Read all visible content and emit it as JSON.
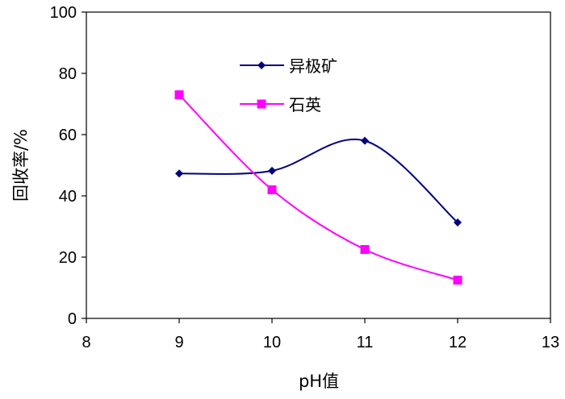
{
  "chart_data": {
    "type": "line",
    "xlabel": "pH值",
    "ylabel": "回收率/%",
    "xlim": [
      8,
      13
    ],
    "ylim": [
      0,
      100
    ],
    "x_ticks": [
      "8",
      "9",
      "10",
      "11",
      "12",
      "13"
    ],
    "y_ticks": [
      "0",
      "20",
      "40",
      "60",
      "80",
      "100"
    ],
    "grid": false,
    "legend_position": "top-center",
    "series": [
      {
        "name": "异极矿",
        "color": "#000080",
        "marker": "diamond",
        "x": [
          9,
          10,
          11,
          12
        ],
        "y": [
          47.3,
          48.2,
          58.0,
          31.3
        ]
      },
      {
        "name": "石英",
        "color": "#ff00ff",
        "marker": "square",
        "x": [
          9,
          10,
          11,
          12
        ],
        "y": [
          73.0,
          42.0,
          22.5,
          12.5
        ]
      }
    ]
  }
}
